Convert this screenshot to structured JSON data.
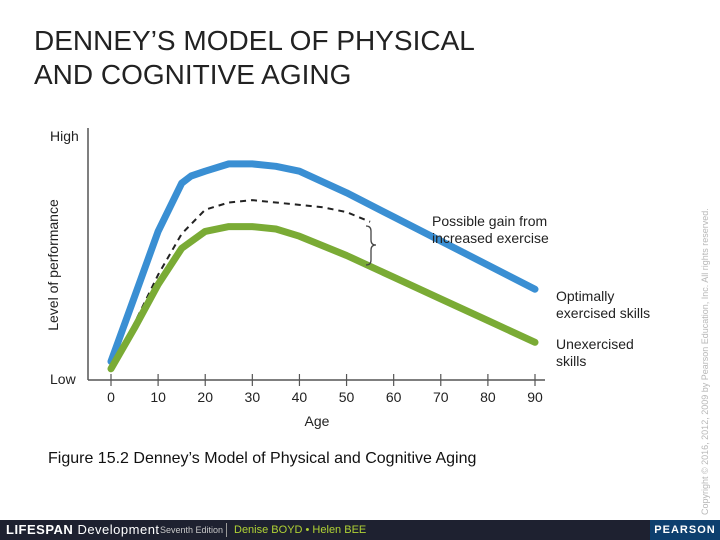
{
  "slide": {
    "title_line1": "DENNEY’S MODEL OF PHYSICAL",
    "title_line2": "AND COGNITIVE AGING",
    "caption": "Figure 15.2 Denney’s Model of Physical and Cognitive Aging",
    "copyright": "Copyright © 2016, 2012, 2009 by Pearson Education, Inc. All rights reserved."
  },
  "footer": {
    "brand_bold": "LIFESPAN",
    "brand_rest": " Development",
    "edition": "Seventh Edition",
    "authors": "Denise BOYD • Helen BEE",
    "publisher": "PEARSON"
  },
  "colors": {
    "optimal": "#3a8fd3",
    "unexercised": "#7aab35",
    "possible": "#222222",
    "axis": "#555555"
  },
  "chart_data": {
    "type": "line",
    "xlabel": "Age",
    "ylabel": "Level of performance",
    "xlim": [
      0,
      90
    ],
    "ylim": [
      0,
      100
    ],
    "x_ticks": [
      0,
      10,
      20,
      30,
      40,
      50,
      60,
      70,
      80,
      90
    ],
    "y_tick_labels": [
      {
        "value": 100,
        "label": "High"
      },
      {
        "value": 0,
        "label": "Low"
      }
    ],
    "grid": false,
    "series": [
      {
        "name": "Optimally exercised skills",
        "style": "solid",
        "x": [
          0,
          5,
          10,
          15,
          17,
          20,
          25,
          30,
          35,
          40,
          50,
          60,
          70,
          80,
          90
        ],
        "y": [
          6,
          33,
          60,
          80,
          83,
          85,
          88,
          88,
          87,
          85,
          76,
          66,
          56,
          46,
          36
        ]
      },
      {
        "name": "Possible gain from increased exercise",
        "style": "dashed",
        "x": [
          0,
          5,
          10,
          15,
          20,
          25,
          30,
          35,
          40,
          45,
          50,
          55
        ],
        "y": [
          4,
          22,
          42,
          59,
          69,
          72,
          73,
          72,
          71,
          70,
          68,
          64
        ]
      },
      {
        "name": "Unexercised skills",
        "style": "solid",
        "x": [
          0,
          5,
          10,
          15,
          20,
          25,
          30,
          35,
          40,
          50,
          60,
          70,
          80,
          90
        ],
        "y": [
          3,
          20,
          38,
          53,
          60,
          62,
          62,
          61,
          58,
          50,
          41,
          32,
          23,
          14
        ]
      }
    ],
    "annotations": [
      {
        "text_line1": "Possible gain from",
        "text_line2": "increased exercise"
      },
      {
        "text_line1": "Optimally",
        "text_line2": "exercised skills"
      },
      {
        "text_line1": "Unexercised",
        "text_line2": "skills"
      }
    ]
  }
}
